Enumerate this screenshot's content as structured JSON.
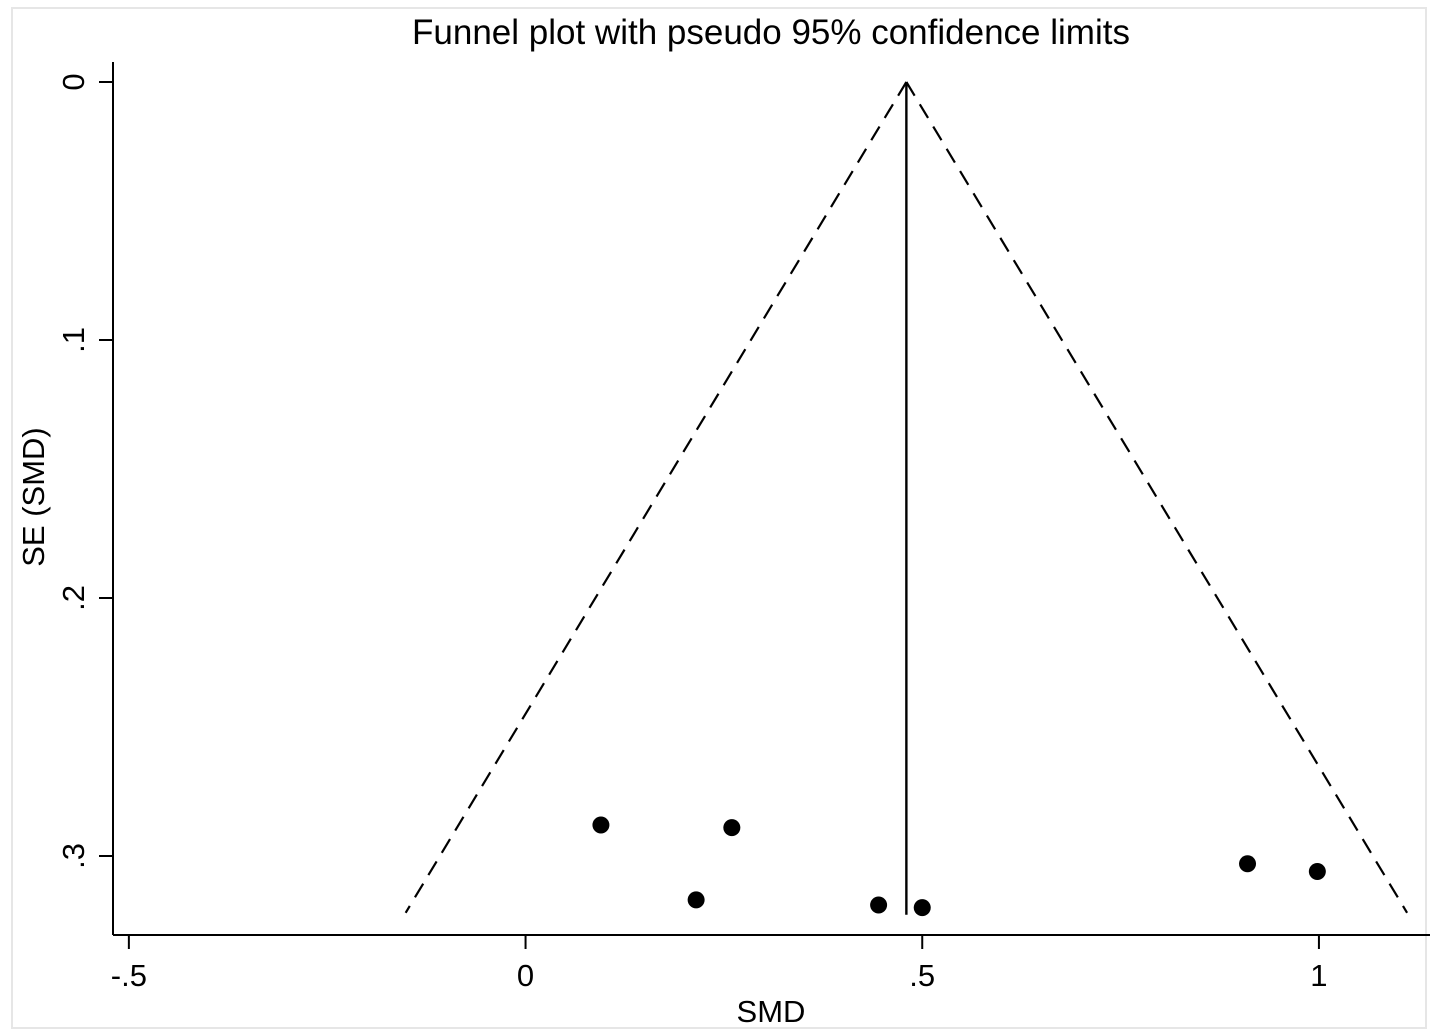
{
  "chart_data": {
    "type": "scatter",
    "title": "Funnel plot with pseudo 95% confidence limits",
    "xlabel": "SMD",
    "ylabel": "SE (SMD)",
    "xlim": [
      -0.52,
      1.14
    ],
    "ylim": [
      0,
      0.33
    ],
    "y_reversed": true,
    "x_ticks": [
      -0.5,
      0,
      0.5,
      1
    ],
    "x_tick_labels": [
      "-.5",
      "0",
      ".5",
      "1"
    ],
    "y_ticks": [
      0,
      0.1,
      0.2,
      0.3
    ],
    "y_tick_labels": [
      "0",
      ".1",
      ".2",
      ".3"
    ],
    "grid": false,
    "pooled_estimate": 0.48,
    "pseudo_ci_se_max": 0.322,
    "points": [
      {
        "x": 0.095,
        "y": 0.288
      },
      {
        "x": 0.26,
        "y": 0.289
      },
      {
        "x": 0.215,
        "y": 0.317
      },
      {
        "x": 0.445,
        "y": 0.319
      },
      {
        "x": 0.5,
        "y": 0.32
      },
      {
        "x": 0.91,
        "y": 0.303
      },
      {
        "x": 0.998,
        "y": 0.306
      }
    ]
  }
}
